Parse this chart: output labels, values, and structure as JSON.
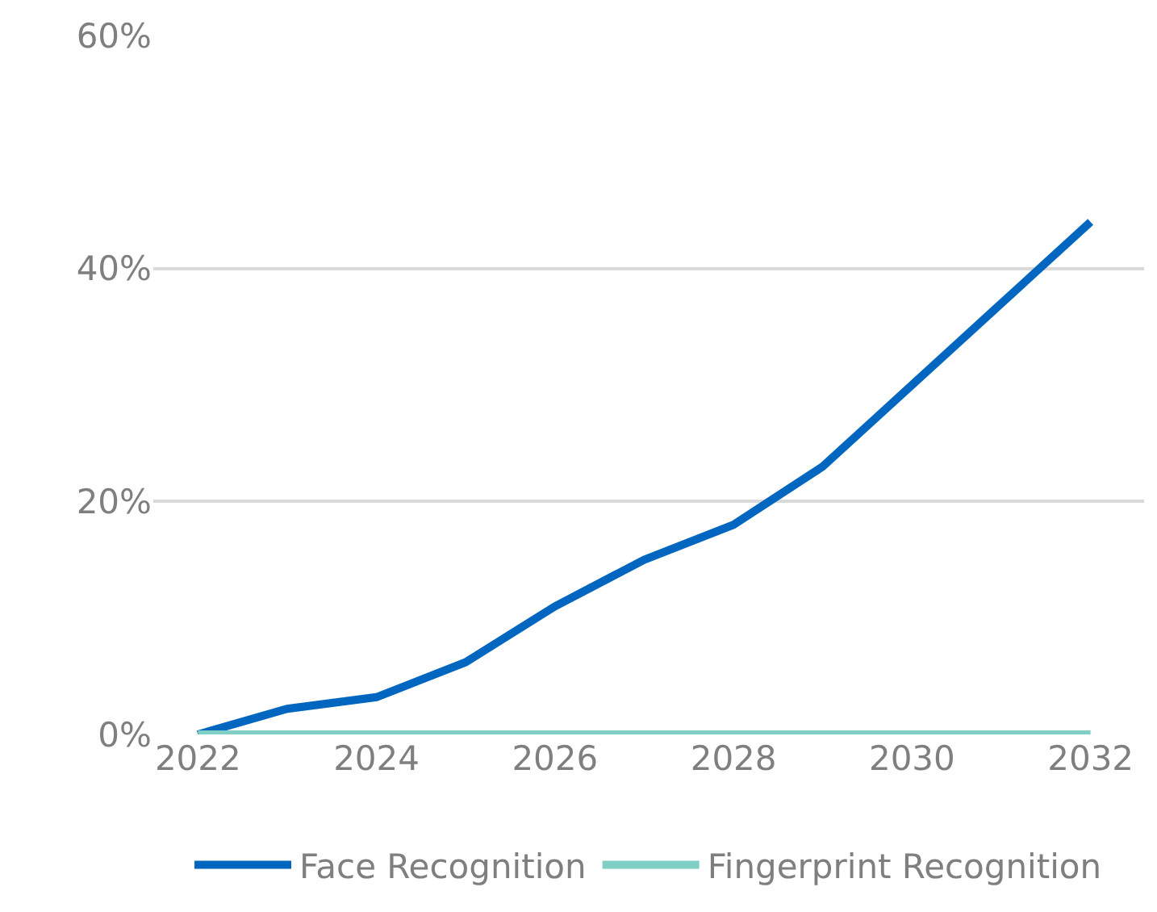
{
  "chart_data": {
    "type": "line",
    "x": [
      2022,
      2023,
      2024,
      2025,
      2026,
      2027,
      2028,
      2029,
      2030,
      2031,
      2032
    ],
    "series": [
      {
        "name": "Face Recognition",
        "color": "#0066bf",
        "values": [
          0,
          2.2,
          3.2,
          6.2,
          11,
          15,
          18,
          23,
          30,
          37,
          44
        ]
      },
      {
        "name": "Fingerprint Recognition",
        "color": "#7fcfc4",
        "values": [
          0,
          0,
          0,
          0,
          0,
          0,
          0,
          0,
          0,
          0,
          0
        ]
      }
    ],
    "xlim": [
      2021.5,
      2032.6
    ],
    "xticks": [
      2022,
      2024,
      2026,
      2028,
      2030,
      2032
    ],
    "ylim": [
      0,
      60
    ],
    "yticks": [
      {
        "value": 0,
        "label": "0%"
      },
      {
        "value": 20,
        "label": "20%"
      },
      {
        "value": 40,
        "label": "40%"
      },
      {
        "value": 60,
        "label": "60%"
      }
    ],
    "grid": "y",
    "legend": "bottom",
    "marker": "none",
    "line_style": "solid"
  }
}
